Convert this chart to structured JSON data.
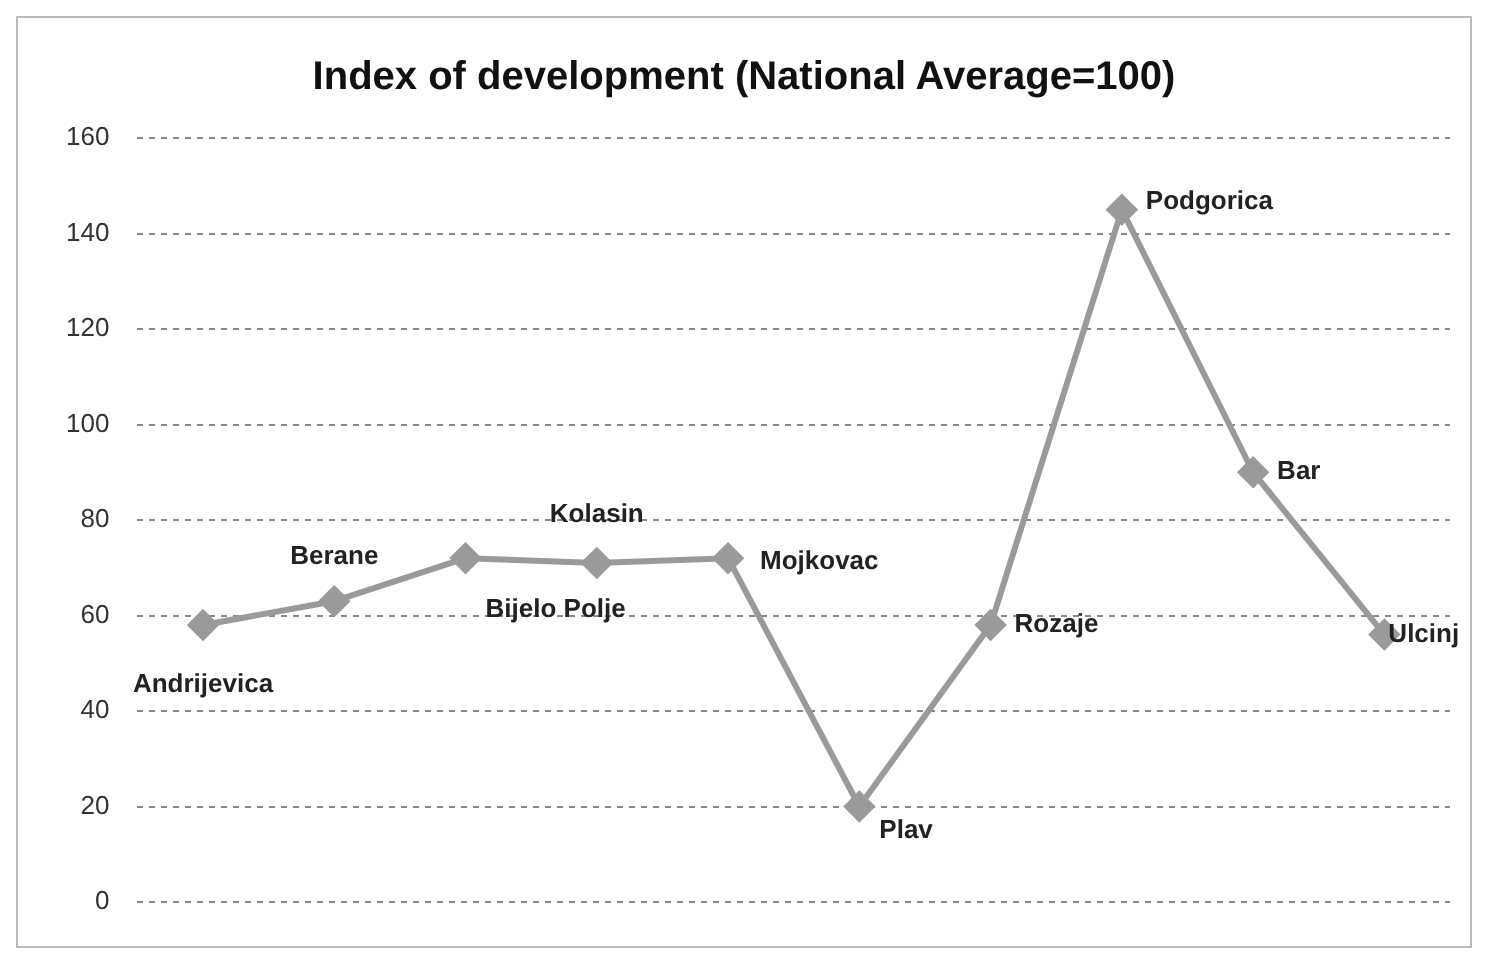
{
  "chart_data": {
    "type": "line",
    "title": "Index of development (National Average=100)",
    "categories": [
      null,
      null,
      null,
      null,
      null,
      null,
      null,
      null,
      null,
      null
    ],
    "annotations": [
      "Andrijevica",
      "Berane",
      "Bijelo Polje",
      "Kolasin",
      "Mojkovac",
      "Plav",
      "Rozaje",
      "Podgorica",
      "Bar",
      "Ulcinj"
    ],
    "series": [
      {
        "color": "#9a9a9a",
        "values": [
          58,
          63,
          72,
          71,
          72,
          20,
          58,
          145,
          90,
          56
        ]
      }
    ],
    "ylim": [
      0,
      160
    ],
    "yticks": [
      0,
      20,
      40,
      60,
      80,
      100,
      120,
      140,
      160
    ],
    "grid": "y",
    "legend": false,
    "marker": "diamond",
    "line_style": "solid",
    "tick_labels": "y"
  }
}
